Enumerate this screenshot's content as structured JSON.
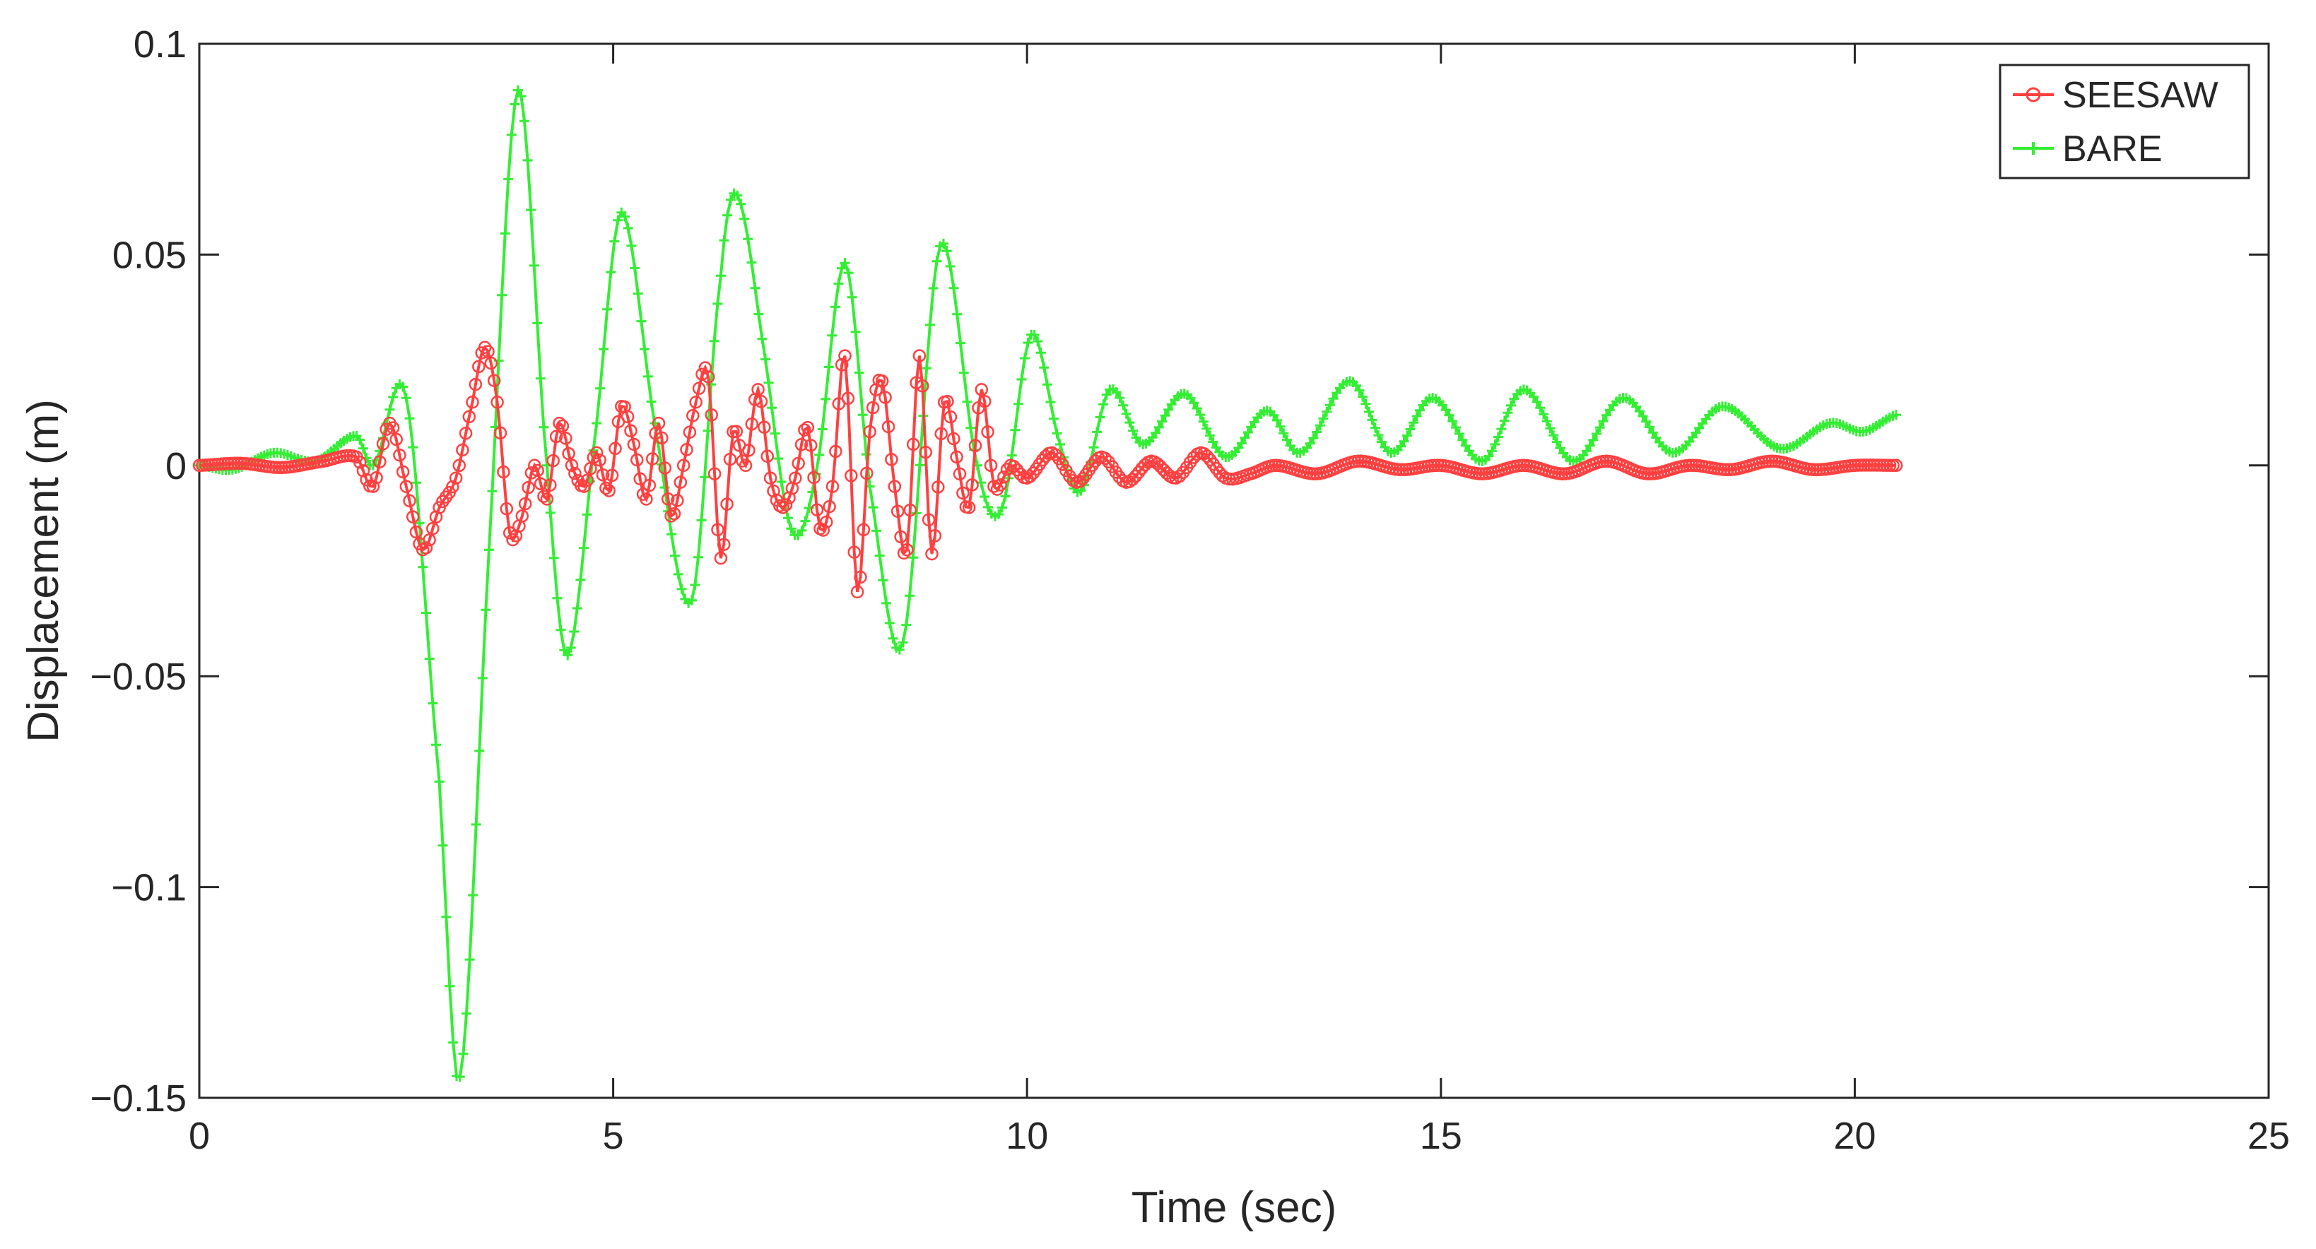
{
  "chart_data": {
    "type": "line",
    "title": "",
    "xlabel": "Time (sec)",
    "ylabel": "Displacement (m)",
    "xlim": [
      0,
      25
    ],
    "ylim": [
      -0.15,
      0.1
    ],
    "xticks": [
      0,
      5,
      10,
      15,
      20,
      25
    ],
    "xtick_labels": [
      "0",
      "5",
      "10",
      "15",
      "20",
      "25"
    ],
    "yticks": [
      -0.15,
      -0.1,
      -0.05,
      0,
      0.05,
      0.1
    ],
    "ytick_labels": [
      "−0.15",
      "−0.1",
      "−0.05",
      "0",
      "0.05",
      "0.1"
    ],
    "grid": false,
    "legend_position": "top-right",
    "series": [
      {
        "name": "SEESAW",
        "color": "#ff4040",
        "marker": "circle",
        "x": [
          0,
          0.5,
          1.0,
          1.5,
          1.9,
          2.1,
          2.3,
          2.5,
          2.7,
          2.9,
          3.1,
          3.3,
          3.45,
          3.6,
          3.75,
          3.9,
          4.05,
          4.2,
          4.35,
          4.5,
          4.65,
          4.8,
          4.95,
          5.1,
          5.25,
          5.4,
          5.55,
          5.7,
          5.85,
          6.0,
          6.15,
          6.3,
          6.45,
          6.6,
          6.75,
          6.9,
          7.05,
          7.2,
          7.35,
          7.5,
          7.65,
          7.8,
          7.95,
          8.1,
          8.25,
          8.4,
          8.55,
          8.7,
          8.85,
          9.0,
          9.15,
          9.3,
          9.45,
          9.6,
          9.8,
          10.0,
          10.3,
          10.6,
          10.9,
          11.2,
          11.5,
          11.8,
          12.1,
          12.4,
          12.7,
          13.0,
          13.5,
          14.0,
          14.5,
          15.0,
          15.5,
          16.0,
          16.5,
          17.0,
          17.5,
          18.0,
          18.5,
          19.0,
          19.5,
          20.0,
          20.5
        ],
        "y": [
          0,
          0.0005,
          -0.0005,
          0.001,
          0.002,
          -0.005,
          0.01,
          -0.005,
          -0.02,
          -0.01,
          -0.003,
          0.015,
          0.028,
          0.015,
          -0.016,
          -0.012,
          0.0,
          -0.008,
          0.01,
          0.0,
          -0.005,
          0.003,
          -0.006,
          0.014,
          0.005,
          -0.008,
          0.01,
          -0.012,
          0.0,
          0.015,
          0.021,
          -0.022,
          0.008,
          0.0,
          0.018,
          -0.003,
          -0.01,
          -0.003,
          0.009,
          -0.015,
          -0.005,
          0.026,
          -0.03,
          0.008,
          0.02,
          -0.005,
          -0.02,
          0.026,
          -0.021,
          0.015,
          0.002,
          -0.01,
          0.018,
          -0.005,
          0.0,
          -0.003,
          0.003,
          -0.004,
          0.002,
          -0.004,
          0.001,
          -0.003,
          0.003,
          -0.003,
          -0.002,
          0.0,
          -0.002,
          0.001,
          -0.001,
          0.0,
          -0.002,
          0.0,
          -0.002,
          0.001,
          -0.002,
          0.0,
          -0.001,
          0.001,
          -0.001,
          0.0,
          0.0
        ]
      },
      {
        "name": "BARE",
        "color": "#33ee33",
        "marker": "plus",
        "x": [
          0,
          0.4,
          0.9,
          1.4,
          1.9,
          2.1,
          2.5,
          2.9,
          3.15,
          3.5,
          3.85,
          4.2,
          4.45,
          4.8,
          5.1,
          5.5,
          5.95,
          6.3,
          6.5,
          6.8,
          7.15,
          7.45,
          7.8,
          8.1,
          8.5,
          8.95,
          9.4,
          9.7,
          10.05,
          10.4,
          10.65,
          11.0,
          11.4,
          11.9,
          12.4,
          12.9,
          13.3,
          13.9,
          14.4,
          14.9,
          15.5,
          16.0,
          16.6,
          17.2,
          17.8,
          18.4,
          19.1,
          19.7,
          20.1,
          20.5
        ],
        "y": [
          0,
          -0.001,
          0.003,
          0.001,
          0.007,
          0.0,
          0.016,
          -0.075,
          -0.145,
          -0.02,
          0.089,
          0.0,
          -0.045,
          0.01,
          0.06,
          0.01,
          -0.032,
          0.045,
          0.064,
          0.03,
          -0.015,
          -0.002,
          0.048,
          -0.005,
          -0.042,
          0.052,
          0.0,
          -0.01,
          0.031,
          0.005,
          -0.006,
          0.018,
          0.005,
          0.017,
          0.002,
          0.013,
          0.003,
          0.02,
          0.003,
          0.016,
          0.001,
          0.018,
          0.001,
          0.016,
          0.003,
          0.014,
          0.004,
          0.01,
          0.008,
          0.012
        ]
      }
    ]
  }
}
